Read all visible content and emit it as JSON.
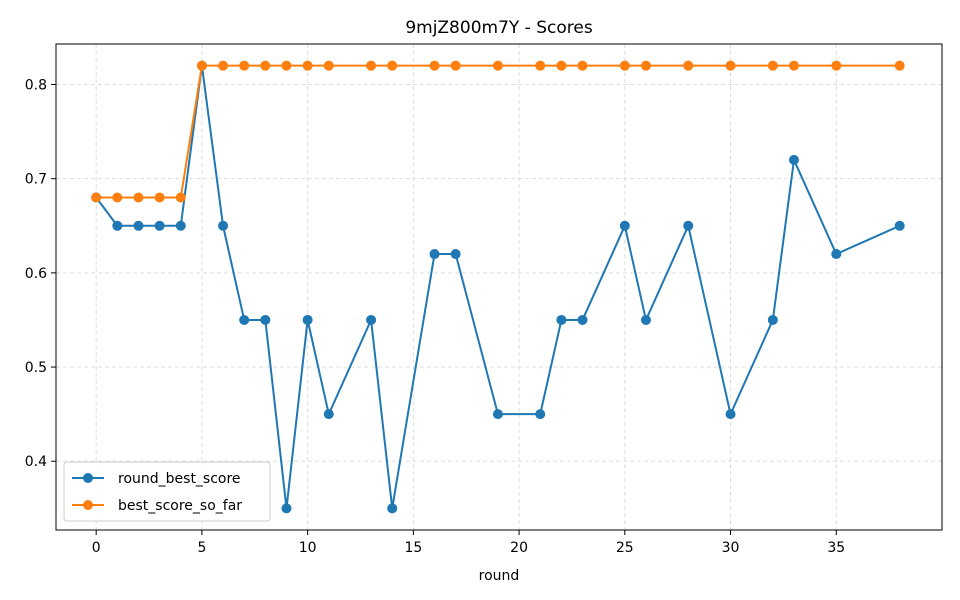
{
  "chart_data": {
    "type": "line",
    "title": "9mjZ800m7Y - Scores",
    "xlabel": "round",
    "ylabel": "",
    "xlim": [
      -1.9,
      40.0
    ],
    "ylim": [
      0.327,
      0.843
    ],
    "xticks": [
      0,
      5,
      10,
      15,
      20,
      25,
      30,
      35
    ],
    "yticks": [
      0.4,
      0.5,
      0.6,
      0.7,
      0.8
    ],
    "grid": true,
    "legend_position": "lower-left",
    "x": [
      0,
      1,
      2,
      3,
      4,
      5,
      6,
      7,
      8,
      9,
      10,
      11,
      13,
      14,
      16,
      17,
      19,
      21,
      22,
      23,
      25,
      26,
      28,
      30,
      32,
      33,
      35,
      38
    ],
    "series": [
      {
        "name": "round_best_score",
        "color": "#1f77b4",
        "values": [
          0.68,
          0.65,
          0.65,
          0.65,
          0.65,
          0.82,
          0.65,
          0.55,
          0.55,
          0.35,
          0.55,
          0.45,
          0.55,
          0.35,
          0.62,
          0.62,
          0.45,
          0.45,
          0.55,
          0.55,
          0.65,
          0.55,
          0.65,
          0.45,
          0.55,
          0.72,
          0.62,
          0.65
        ]
      },
      {
        "name": "best_score_so_far",
        "color": "#ff7f0e",
        "values": [
          0.68,
          0.68,
          0.68,
          0.68,
          0.68,
          0.82,
          0.82,
          0.82,
          0.82,
          0.82,
          0.82,
          0.82,
          0.82,
          0.82,
          0.82,
          0.82,
          0.82,
          0.82,
          0.82,
          0.82,
          0.82,
          0.82,
          0.82,
          0.82,
          0.82,
          0.82,
          0.82,
          0.82
        ]
      }
    ]
  }
}
